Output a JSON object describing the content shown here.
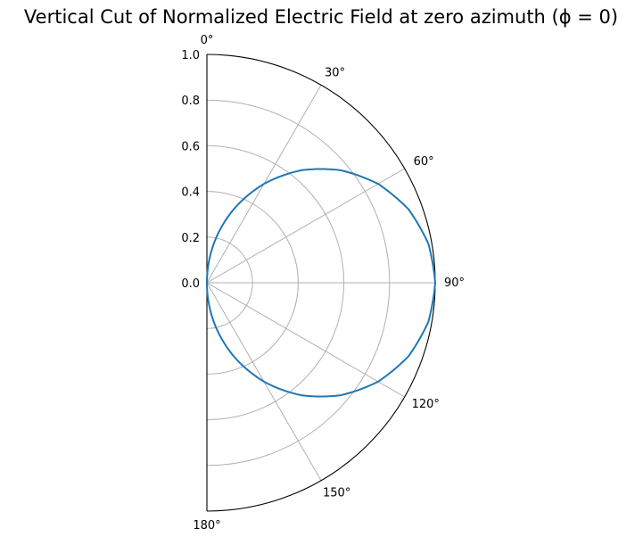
{
  "chart_data": {
    "type": "line",
    "projection": "polar-half",
    "title": "Vertical Cut of Normalized Electric Field at zero azimuth (ϕ = 0)",
    "grid": true,
    "theta_range_deg": [
      0,
      180
    ],
    "theta_zero_location": "top",
    "theta_direction": "clockwise",
    "theta_ticks_deg": [
      0,
      30,
      60,
      90,
      120,
      150,
      180
    ],
    "theta_tick_labels": [
      "0°",
      "30°",
      "60°",
      "90°",
      "120°",
      "150°",
      "180°"
    ],
    "r_range": [
      0,
      1.0
    ],
    "r_ticks": [
      0.0,
      0.2,
      0.4,
      0.6,
      0.8,
      1.0
    ],
    "r_tick_labels": [
      "0.0",
      "0.2",
      "0.4",
      "0.6",
      "0.8",
      "1.0"
    ],
    "series": [
      {
        "color": "#1f77b4",
        "x": [
          0,
          10,
          20,
          30,
          40,
          50,
          60,
          70,
          80,
          90,
          100,
          110,
          120,
          130,
          140,
          150,
          160,
          170,
          180
        ],
        "y": [
          0.0,
          0.174,
          0.342,
          0.5,
          0.643,
          0.766,
          0.866,
          0.94,
          0.985,
          1.0,
          0.985,
          0.94,
          0.866,
          0.766,
          0.643,
          0.5,
          0.342,
          0.174,
          0.0
        ]
      }
    ]
  },
  "colors": {
    "grid": "#b0b0b0",
    "spine": "#000000",
    "series": "#1f77b4"
  }
}
